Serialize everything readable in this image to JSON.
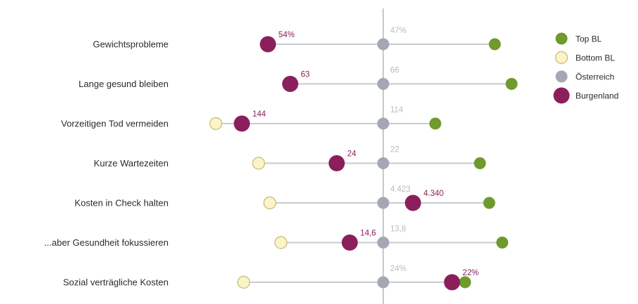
{
  "colors": {
    "top_bl": "#6f9a2c",
    "bottom_bl_fill": "#fbf4c9",
    "bottom_bl_stroke": "#cfc483",
    "oesterreich": "#a3a8b4",
    "burgenland": "#8a1f5c",
    "connector": "#c9cbd2",
    "center_axis": "#c5c8cf",
    "oesterreich_label": "#b8bcc6"
  },
  "chart_data": {
    "type": "dot-range",
    "legend": [
      {
        "key": "top_bl",
        "label": "Top BL"
      },
      {
        "key": "bottom_bl",
        "label": "Bottom BL"
      },
      {
        "key": "oesterreich",
        "label": "Österreich"
      },
      {
        "key": "burgenland",
        "label": "Burgenland"
      }
    ],
    "legend_position": "top-right",
    "scale_note": "relative deviation from Österreich (centered axis)",
    "center": 0,
    "xlim": [
      -1.0,
      1.0
    ],
    "rows": [
      {
        "category": "Gewichtsprobleme",
        "top_bl": 0.6,
        "bottom_bl": null,
        "oesterreich": 0,
        "burgenland": -0.62,
        "burgenland_label": "54%",
        "oesterreich_label": "47%"
      },
      {
        "category": "Lange gesund bleiben",
        "top_bl": 0.69,
        "bottom_bl": null,
        "oesterreich": 0,
        "burgenland": -0.5,
        "burgenland_label": "63",
        "oesterreich_label": "66"
      },
      {
        "category": "Vorzeitigen Tod vermeiden",
        "top_bl": 0.28,
        "bottom_bl": -0.9,
        "oesterreich": 0,
        "burgenland": -0.76,
        "burgenland_label": "144",
        "oesterreich_label": "114"
      },
      {
        "category": "Kurze Wartezeiten",
        "top_bl": 0.52,
        "bottom_bl": -0.67,
        "oesterreich": 0,
        "burgenland": -0.25,
        "burgenland_label": "24",
        "oesterreich_label": "22"
      },
      {
        "category": "Kosten in Check halten",
        "top_bl": 0.57,
        "bottom_bl": -0.61,
        "oesterreich": 0,
        "burgenland": 0.16,
        "burgenland_label": "4.340",
        "oesterreich_label": "4.423"
      },
      {
        "category": "...aber Gesundheit fokussieren",
        "top_bl": 0.64,
        "bottom_bl": -0.55,
        "oesterreich": 0,
        "burgenland": -0.18,
        "burgenland_label": "14,6",
        "oesterreich_label": "13,8"
      },
      {
        "category": "Sozial verträgliche Kosten",
        "top_bl": 0.44,
        "bottom_bl": -0.75,
        "oesterreich": 0,
        "burgenland": 0.37,
        "burgenland_label": "22%",
        "oesterreich_label": "24%"
      }
    ]
  }
}
